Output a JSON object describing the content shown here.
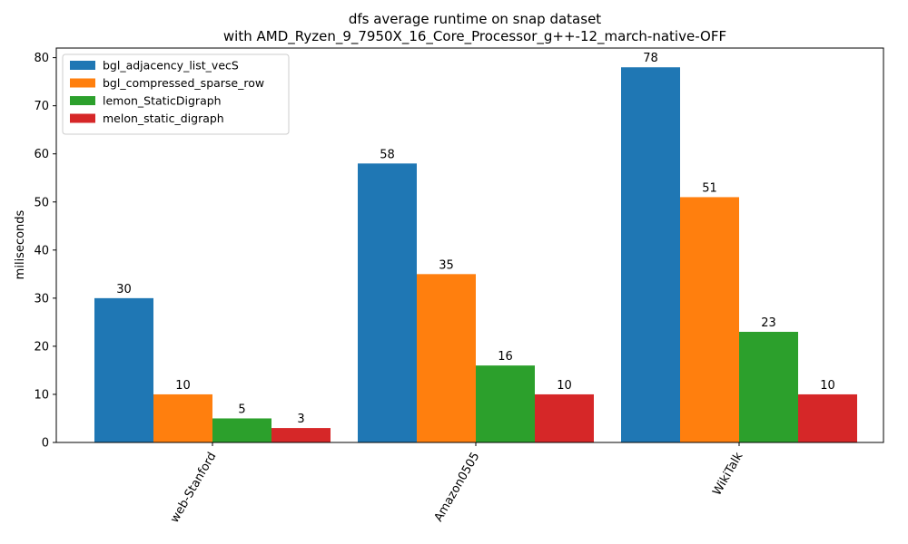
{
  "chart_data": {
    "type": "bar",
    "title": "dfs average runtime on snap dataset",
    "subtitle": "with AMD_Ryzen_9_7950X_16_Core_Processor_g++-12_march-native-OFF",
    "xlabel": "",
    "ylabel": "miliseconds",
    "ylim": [
      0,
      82
    ],
    "yticks": [
      0,
      10,
      20,
      30,
      40,
      50,
      60,
      70,
      80
    ],
    "categories": [
      "web-Stanford",
      "Amazon0505",
      "WikiTalk"
    ],
    "series": [
      {
        "name": "bgl_adjacency_list_vecS",
        "color": "#1f77b4",
        "values": [
          30,
          58,
          78
        ]
      },
      {
        "name": "bgl_compressed_sparse_row",
        "color": "#ff7f0e",
        "values": [
          10,
          35,
          51
        ]
      },
      {
        "name": "lemon_StaticDigraph",
        "color": "#2ca02c",
        "values": [
          5,
          16,
          23
        ]
      },
      {
        "name": "melon_static_digraph",
        "color": "#d62728",
        "values": [
          3,
          10,
          10
        ]
      }
    ],
    "grid": false,
    "legend_position": "top-left",
    "x_tick_rotation": "60 degrees"
  }
}
